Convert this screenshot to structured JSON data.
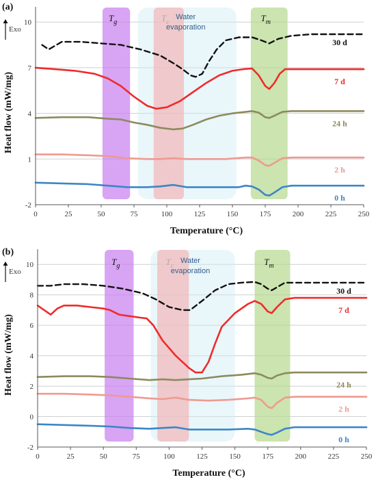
{
  "chart_data": [
    {
      "panel": "(a)",
      "type": "line",
      "xlabel": "Temperature (°C)",
      "ylabel": "Heat flow (mW/mg)",
      "exo_label": "Exo",
      "xlim": [
        0,
        250
      ],
      "ylim": [
        -2,
        11
      ],
      "xticks": [
        "0",
        "25",
        "50",
        "75",
        "100",
        "125",
        "150",
        "175",
        "200",
        "225",
        "250"
      ],
      "yticks": [
        "-2",
        "1",
        "4",
        "7",
        "10"
      ],
      "grid": "horizontal",
      "regions": [
        {
          "label": "Tg",
          "sub": "g",
          "from": 51,
          "to": 72,
          "color": "#c77ef0"
        },
        {
          "label": "Tc",
          "sub": "c",
          "from": 90,
          "to": 113,
          "color": "#f1b7b7"
        },
        {
          "label": "Water evaporation",
          "from": 78,
          "to": 153,
          "color": "#cfeaf5"
        },
        {
          "label": "Tm",
          "sub": "m",
          "from": 164,
          "to": 192,
          "color": "#b5d88f"
        }
      ],
      "series": [
        {
          "name": "30 d",
          "color": "#111111",
          "dashed": true,
          "x": [
            5,
            10,
            20,
            35,
            50,
            65,
            80,
            95,
            105,
            112,
            118,
            122,
            127,
            132,
            138,
            145,
            155,
            165,
            172,
            178,
            185,
            195,
            210,
            230,
            250
          ],
          "y": [
            8.5,
            8.2,
            8.7,
            8.7,
            8.6,
            8.5,
            8.2,
            7.8,
            7.3,
            6.9,
            6.5,
            6.4,
            6.6,
            7.4,
            8.2,
            8.8,
            9.0,
            9.0,
            8.8,
            8.6,
            8.9,
            9.1,
            9.2,
            9.2,
            9.2
          ]
        },
        {
          "name": "7 d",
          "color": "#ee2b2b",
          "x": [
            0,
            15,
            30,
            45,
            55,
            65,
            75,
            85,
            92,
            100,
            110,
            120,
            130,
            140,
            150,
            158,
            165,
            170,
            175,
            178,
            182,
            186,
            190,
            200,
            220,
            250
          ],
          "y": [
            7.0,
            6.9,
            6.8,
            6.6,
            6.3,
            5.8,
            5.1,
            4.5,
            4.3,
            4.4,
            4.8,
            5.4,
            6.0,
            6.5,
            6.8,
            6.9,
            6.95,
            6.5,
            5.8,
            5.6,
            6.0,
            6.6,
            6.9,
            6.9,
            6.9,
            6.9
          ]
        },
        {
          "name": "24 h",
          "color": "#8c8a5e",
          "x": [
            0,
            20,
            40,
            55,
            65,
            75,
            85,
            95,
            105,
            112,
            120,
            130,
            140,
            150,
            160,
            165,
            170,
            175,
            178,
            182,
            188,
            195,
            210,
            250
          ],
          "y": [
            3.7,
            3.75,
            3.75,
            3.65,
            3.6,
            3.4,
            3.25,
            3.05,
            2.95,
            3.0,
            3.25,
            3.6,
            3.85,
            4.0,
            4.1,
            4.15,
            4.05,
            3.75,
            3.7,
            3.85,
            4.1,
            4.15,
            4.15,
            4.15
          ]
        },
        {
          "name": "2 h",
          "color": "#ee9a92",
          "x": [
            0,
            20,
            40,
            55,
            70,
            85,
            95,
            105,
            115,
            130,
            145,
            160,
            165,
            170,
            175,
            178,
            182,
            188,
            195,
            210,
            250
          ],
          "y": [
            1.3,
            1.3,
            1.25,
            1.2,
            1.05,
            1.0,
            1.0,
            1.05,
            1.0,
            1.0,
            1.0,
            1.1,
            1.1,
            0.9,
            0.6,
            0.55,
            0.75,
            1.05,
            1.1,
            1.1,
            1.1
          ]
        },
        {
          "name": "0 h",
          "color": "#3b86c6",
          "x": [
            0,
            20,
            40,
            55,
            70,
            85,
            95,
            105,
            115,
            130,
            145,
            155,
            160,
            165,
            170,
            175,
            178,
            182,
            188,
            195,
            210,
            250
          ],
          "y": [
            -0.55,
            -0.6,
            -0.65,
            -0.75,
            -0.85,
            -0.85,
            -0.8,
            -0.7,
            -0.85,
            -0.85,
            -0.85,
            -0.85,
            -0.75,
            -0.8,
            -1.0,
            -1.35,
            -1.4,
            -1.2,
            -0.85,
            -0.75,
            -0.75,
            -0.75
          ]
        }
      ]
    },
    {
      "panel": "(b)",
      "type": "line",
      "xlabel": "Temperature (°C)",
      "ylabel": "Heat flow (mW/mg)",
      "exo_label": "Exo",
      "xlim": [
        0,
        250
      ],
      "ylim": [
        -2,
        11
      ],
      "xticks": [
        "0",
        "25",
        "50",
        "75",
        "100",
        "125",
        "150",
        "175",
        "200",
        "225",
        "250"
      ],
      "yticks": [
        "-2",
        "0",
        "2",
        "4",
        "6",
        "8",
        "10"
      ],
      "grid": "horizontal",
      "regions": [
        {
          "label": "Tg",
          "sub": "g",
          "from": 51,
          "to": 73,
          "color": "#c77ef0"
        },
        {
          "label": "Tc",
          "sub": "c",
          "from": 91,
          "to": 115,
          "color": "#f1b7b7"
        },
        {
          "label": "Water evaporation",
          "from": 86,
          "to": 150,
          "color": "#cfeaf5"
        },
        {
          "label": "Tm",
          "sub": "m",
          "from": 165,
          "to": 192,
          "color": "#b5d88f"
        }
      ],
      "series": [
        {
          "name": "30 d",
          "color": "#111111",
          "dashed": true,
          "x": [
            0,
            10,
            20,
            35,
            50,
            65,
            80,
            90,
            100,
            110,
            116,
            125,
            135,
            145,
            155,
            165,
            170,
            175,
            178,
            182,
            188,
            195,
            210,
            230,
            250
          ],
          "y": [
            8.6,
            8.6,
            8.7,
            8.7,
            8.6,
            8.4,
            8.1,
            7.7,
            7.2,
            7.0,
            7.0,
            7.6,
            8.3,
            8.7,
            8.8,
            8.85,
            8.7,
            8.4,
            8.3,
            8.5,
            8.8,
            8.8,
            8.8,
            8.8,
            8.8
          ]
        },
        {
          "name": "7 d",
          "color": "#ee2b2b",
          "x": [
            0,
            5,
            10,
            15,
            20,
            30,
            40,
            50,
            55,
            62,
            70,
            78,
            83,
            88,
            95,
            105,
            115,
            120,
            125,
            130,
            135,
            140,
            150,
            160,
            165,
            170,
            175,
            178,
            182,
            188,
            195,
            210,
            250
          ],
          "y": [
            7.3,
            7.0,
            6.7,
            7.1,
            7.3,
            7.3,
            7.2,
            7.1,
            7.0,
            6.7,
            6.6,
            6.5,
            6.45,
            6.0,
            5.0,
            4.0,
            3.2,
            2.9,
            2.9,
            3.6,
            4.8,
            5.9,
            6.8,
            7.4,
            7.6,
            7.4,
            6.9,
            6.8,
            7.2,
            7.7,
            7.8,
            7.8,
            7.8
          ]
        },
        {
          "name": "24 h",
          "color": "#8c8a5e",
          "x": [
            0,
            20,
            40,
            55,
            70,
            85,
            95,
            105,
            115,
            125,
            140,
            155,
            165,
            170,
            175,
            178,
            182,
            188,
            195,
            210,
            250
          ],
          "y": [
            2.6,
            2.65,
            2.65,
            2.6,
            2.5,
            2.4,
            2.45,
            2.4,
            2.45,
            2.5,
            2.65,
            2.75,
            2.85,
            2.75,
            2.55,
            2.5,
            2.7,
            2.85,
            2.9,
            2.9,
            2.9
          ]
        },
        {
          "name": "2 h",
          "color": "#ee9a92",
          "x": [
            0,
            20,
            40,
            55,
            70,
            85,
            95,
            105,
            115,
            130,
            145,
            160,
            165,
            170,
            175,
            178,
            182,
            188,
            195,
            210,
            250
          ],
          "y": [
            1.5,
            1.5,
            1.45,
            1.4,
            1.3,
            1.2,
            1.15,
            1.25,
            1.1,
            1.05,
            1.1,
            1.2,
            1.25,
            1.1,
            0.65,
            0.55,
            0.9,
            1.25,
            1.3,
            1.3,
            1.3
          ]
        },
        {
          "name": "0 h",
          "color": "#3b86c6",
          "x": [
            0,
            20,
            40,
            55,
            70,
            85,
            95,
            105,
            115,
            130,
            145,
            160,
            165,
            170,
            175,
            178,
            182,
            188,
            195,
            210,
            250
          ],
          "y": [
            -0.5,
            -0.55,
            -0.6,
            -0.65,
            -0.75,
            -0.8,
            -0.75,
            -0.7,
            -0.85,
            -0.85,
            -0.85,
            -0.8,
            -0.85,
            -1.0,
            -1.15,
            -1.2,
            -1.05,
            -0.8,
            -0.7,
            -0.7,
            -0.7
          ]
        }
      ]
    }
  ]
}
